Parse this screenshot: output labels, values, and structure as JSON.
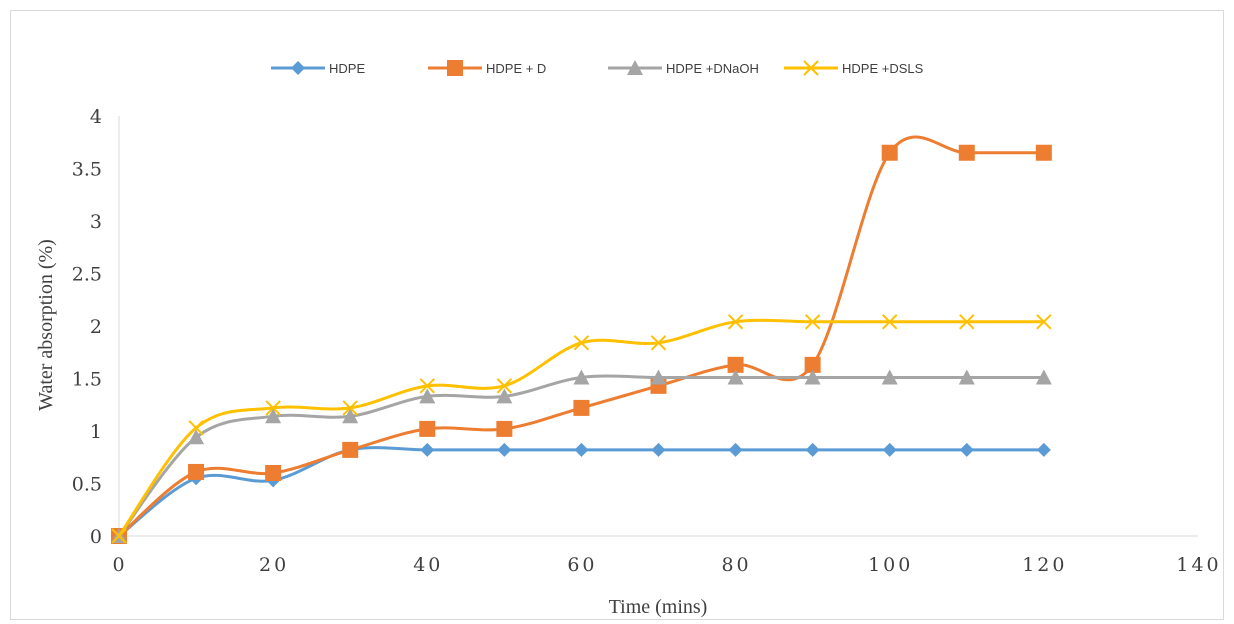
{
  "chart_data": {
    "type": "line",
    "smooth": true,
    "title": "",
    "xlabel": "Time (mins)",
    "ylabel": "Water absorption (%)",
    "xlim": [
      0,
      140
    ],
    "ylim": [
      0,
      4
    ],
    "xticks": [
      0,
      20,
      40,
      60,
      80,
      100,
      120,
      140
    ],
    "yticks": [
      0,
      0.5,
      1,
      1.5,
      2,
      2.5,
      3,
      3.5,
      4
    ],
    "grid": false,
    "legend_position": "top",
    "x": [
      0,
      10,
      20,
      30,
      40,
      50,
      60,
      70,
      80,
      90,
      100,
      110,
      120
    ],
    "series": [
      {
        "name": "HDPE",
        "color": "#5b9bd5",
        "marker": "diamond",
        "values": [
          0,
          0.55,
          0.53,
          0.82,
          0.82,
          0.82,
          0.82,
          0.82,
          0.82,
          0.82,
          0.82,
          0.82,
          0.82
        ]
      },
      {
        "name": "HDPE + D",
        "color": "#ed7d31",
        "marker": "square",
        "values": [
          0,
          0.61,
          0.6,
          0.82,
          1.02,
          1.02,
          1.22,
          1.43,
          1.63,
          1.63,
          3.65,
          3.65,
          3.65
        ]
      },
      {
        "name": "HDPE +DNaOH",
        "color": "#a5a5a5",
        "marker": "triangle",
        "values": [
          0,
          0.94,
          1.14,
          1.14,
          1.33,
          1.33,
          1.51,
          1.51,
          1.51,
          1.51,
          1.51,
          1.51,
          1.51
        ]
      },
      {
        "name": "HDPE +DSLS",
        "color": "#ffc000",
        "marker": "x",
        "values": [
          0,
          1.03,
          1.22,
          1.22,
          1.43,
          1.43,
          1.84,
          1.84,
          2.04,
          2.04,
          2.04,
          2.04,
          2.04
        ]
      }
    ]
  }
}
